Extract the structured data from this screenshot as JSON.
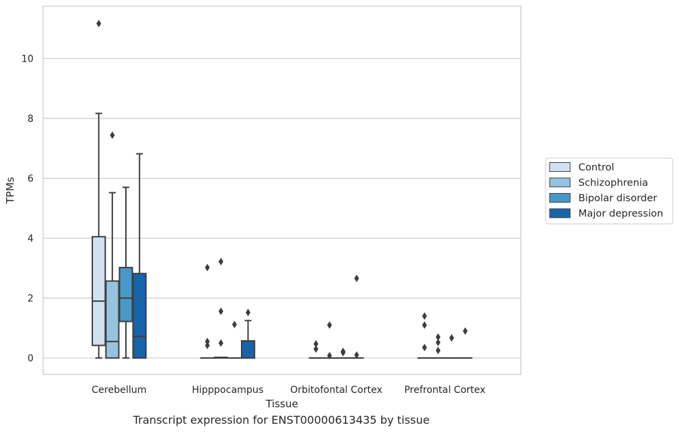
{
  "caption": "Transcript expression for ENST00000613435 by tissue",
  "chart_data": {
    "type": "box",
    "xlabel": "Tissue",
    "ylabel": "TPMs",
    "ylim": [
      -0.55,
      11.75
    ],
    "y_ticks": [
      0,
      2,
      4,
      6,
      8,
      10
    ],
    "grid": "y",
    "legend_position": "right",
    "categories": [
      "Cerebellum",
      "Hipppocampus",
      "Orbitofontal Cortex",
      "Prefrontal Cortex"
    ],
    "series": [
      {
        "name": "Control",
        "color": "#d0e1f2",
        "boxes": [
          {
            "whislo": 0.0,
            "q1": 0.42,
            "med": 1.9,
            "q3": 4.05,
            "whishi": 8.17,
            "fliers": [
              11.17
            ]
          },
          {
            "whislo": 0.0,
            "q1": 0.0,
            "med": 0.0,
            "q3": 0.0,
            "whishi": 0.0,
            "fliers": [
              0.42,
              0.55,
              3.02
            ]
          },
          {
            "whislo": 0.0,
            "q1": 0.0,
            "med": 0.0,
            "q3": 0.0,
            "whishi": 0.0,
            "fliers": [
              0.3,
              0.47
            ]
          },
          {
            "whislo": 0.0,
            "q1": 0.0,
            "med": 0.0,
            "q3": 0.0,
            "whishi": 0.0,
            "fliers": [
              0.35,
              1.1,
              1.4
            ]
          }
        ]
      },
      {
        "name": "Schizophrenia",
        "color": "#94c4df",
        "boxes": [
          {
            "whislo": 0.0,
            "q1": 0.0,
            "med": 0.55,
            "q3": 2.57,
            "whishi": 5.52,
            "fliers": [
              7.44
            ]
          },
          {
            "whislo": 0.0,
            "q1": 0.0,
            "med": 0.02,
            "q3": 0.02,
            "whishi": 0.02,
            "fliers": [
              0.5,
              1.56,
              3.22
            ]
          },
          {
            "whislo": 0.0,
            "q1": 0.0,
            "med": 0.0,
            "q3": 0.0,
            "whishi": 0.0,
            "fliers": [
              0.08,
              1.1
            ]
          },
          {
            "whislo": 0.0,
            "q1": 0.0,
            "med": 0.0,
            "q3": 0.0,
            "whishi": 0.0,
            "fliers": [
              0.25,
              0.52,
              0.7
            ]
          }
        ]
      },
      {
        "name": "Bipolar disorder",
        "color": "#4a98c9",
        "boxes": [
          {
            "whislo": 0.0,
            "q1": 1.22,
            "med": 2.0,
            "q3": 3.02,
            "whishi": 5.7,
            "fliers": []
          },
          {
            "whislo": 0.0,
            "q1": 0.0,
            "med": 0.0,
            "q3": 0.0,
            "whishi": 0.0,
            "fliers": [
              1.12
            ]
          },
          {
            "whislo": 0.0,
            "q1": 0.0,
            "med": 0.0,
            "q3": 0.0,
            "whishi": 0.0,
            "fliers": [
              0.18,
              0.22
            ]
          },
          {
            "whislo": 0.0,
            "q1": 0.0,
            "med": 0.0,
            "q3": 0.0,
            "whishi": 0.0,
            "fliers": [
              0.67
            ]
          }
        ]
      },
      {
        "name": "Major depression",
        "color": "#1764ab",
        "boxes": [
          {
            "whislo": 0.0,
            "q1": 0.0,
            "med": 0.72,
            "q3": 2.82,
            "whishi": 6.82,
            "fliers": []
          },
          {
            "whislo": 0.0,
            "q1": 0.0,
            "med": 0.0,
            "q3": 0.57,
            "whishi": 1.25,
            "fliers": [
              1.52
            ]
          },
          {
            "whislo": 0.0,
            "q1": 0.0,
            "med": 0.0,
            "q3": 0.0,
            "whishi": 0.0,
            "fliers": [
              0.1,
              2.66
            ]
          },
          {
            "whislo": 0.0,
            "q1": 0.0,
            "med": 0.0,
            "q3": 0.0,
            "whishi": 0.0,
            "fliers": [
              0.9
            ]
          }
        ]
      }
    ]
  }
}
